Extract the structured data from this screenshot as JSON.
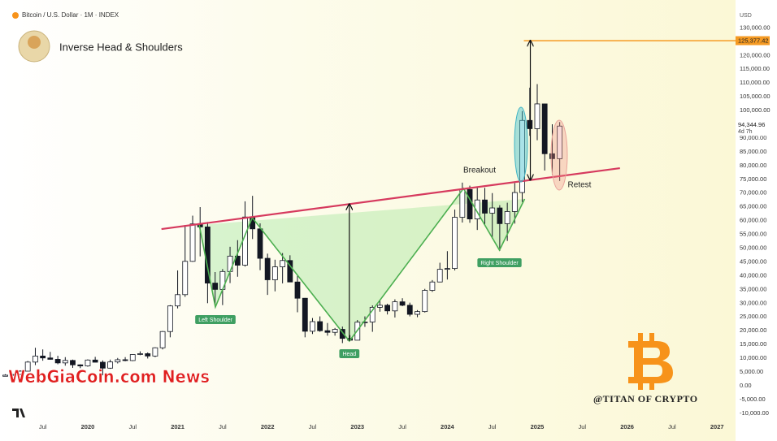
{
  "chart_data": {
    "type": "candlestick",
    "title": "Bitcoin / U.S. Dollar · 1M · INDEX",
    "subtitle": "Inverse Head & Shoulders",
    "currency": "USD",
    "x": [
      2019.083,
      2019.167,
      2019.25,
      2019.333,
      2019.417,
      2019.5,
      2019.583,
      2019.667,
      2019.75,
      2019.833,
      2019.917,
      2020,
      2020.083,
      2020.167,
      2020.25,
      2020.333,
      2020.417,
      2020.5,
      2020.583,
      2020.667,
      2020.75,
      2020.833,
      2020.917,
      2021,
      2021.083,
      2021.167,
      2021.25,
      2021.333,
      2021.417,
      2021.5,
      2021.583,
      2021.667,
      2021.75,
      2021.833,
      2021.917,
      2022,
      2022.083,
      2022.167,
      2022.25,
      2022.333,
      2022.417,
      2022.5,
      2022.583,
      2022.667,
      2022.75,
      2022.833,
      2022.917,
      2023,
      2023.083,
      2023.167,
      2023.25,
      2023.333,
      2023.417,
      2023.5,
      2023.583,
      2023.667,
      2023.75,
      2023.833,
      2023.917,
      2024,
      2024.083,
      2024.167,
      2024.25,
      2024.333,
      2024.417,
      2024.5,
      2024.583,
      2024.667,
      2024.75,
      2024.833,
      2024.917,
      2025,
      2025.083,
      2025.167,
      2025.25
    ],
    "open": [
      3450,
      3850,
      4100,
      5300,
      8600,
      10800,
      10100,
      9600,
      8300,
      9200,
      7600,
      7200,
      9350,
      8550,
      6400,
      8650,
      9450,
      9150,
      11350,
      11650,
      10800,
      13800,
      19700,
      29000,
      33100,
      45200,
      58800,
      57700,
      37300,
      35000,
      41500,
      47100,
      43800,
      61300,
      57000,
      46300,
      38500,
      43200,
      45500,
      37700,
      31800,
      19800,
      23300,
      20000,
      19400,
      20500,
      17200,
      16550,
      23100,
      23150,
      28500,
      29250,
      27200,
      30500,
      29250,
      25950,
      26950,
      34650,
      37700,
      42300,
      42600,
      61200,
      71300,
      60600,
      67500,
      62700,
      64600,
      58900,
      63300,
      70200,
      96400,
      93400,
      102400,
      84300,
      82500
    ],
    "high": [
      4200,
      4100,
      5600,
      9000,
      13800,
      13200,
      12300,
      10900,
      10400,
      9500,
      7800,
      9600,
      10500,
      9200,
      9500,
      10100,
      10400,
      11450,
      12500,
      12100,
      14000,
      19900,
      29300,
      41900,
      58400,
      61800,
      64900,
      59500,
      41300,
      42400,
      50500,
      52900,
      67000,
      69000,
      59000,
      48000,
      45800,
      48200,
      47400,
      40000,
      31900,
      24600,
      25200,
      22800,
      21000,
      21500,
      18400,
      23900,
      25200,
      29200,
      31000,
      29800,
      31400,
      31800,
      30200,
      27500,
      35200,
      38400,
      44700,
      48900,
      64000,
      73800,
      72700,
      71900,
      71900,
      70000,
      65600,
      66500,
      73600,
      99800,
      108300,
      109600,
      102500,
      95000,
      95800
    ],
    "low": [
      3400,
      3700,
      4100,
      5300,
      7500,
      9100,
      9500,
      7800,
      7300,
      6500,
      6400,
      6900,
      8500,
      3800,
      6150,
      8100,
      8900,
      8950,
      11100,
      9900,
      10400,
      13200,
      17600,
      28100,
      32300,
      45000,
      47000,
      30000,
      28800,
      29300,
      37300,
      39600,
      43300,
      53300,
      42000,
      33000,
      34300,
      37200,
      37700,
      26700,
      17600,
      18800,
      19600,
      18200,
      18200,
      15500,
      16300,
      16500,
      21400,
      19600,
      26900,
      25900,
      24800,
      28900,
      25200,
      24900,
      26600,
      34100,
      37600,
      38600,
      41900,
      59300,
      59200,
      56600,
      58500,
      53500,
      49000,
      52600,
      58900,
      66800,
      90800,
      89200,
      78200,
      76600,
      74400
    ],
    "close": [
      3850,
      4100,
      5300,
      8600,
      10800,
      10100,
      9600,
      8300,
      9200,
      7600,
      7200,
      9350,
      8550,
      6400,
      8650,
      9450,
      9150,
      11350,
      11650,
      10800,
      13800,
      19700,
      29000,
      33100,
      45200,
      58800,
      57700,
      37300,
      35000,
      41500,
      47100,
      43800,
      61300,
      57000,
      46300,
      38500,
      43200,
      45500,
      37700,
      31800,
      19800,
      23300,
      20000,
      19400,
      20500,
      17200,
      16550,
      23100,
      23150,
      28500,
      29250,
      27200,
      30500,
      29250,
      25950,
      26950,
      34650,
      37700,
      42300,
      42600,
      61200,
      71300,
      60600,
      67500,
      62700,
      64600,
      58900,
      63300,
      70200,
      96400,
      93400,
      102400,
      84300,
      82500,
      94344.96
    ],
    "up_color": "#ffffff",
    "down_color": "#131722",
    "xlim": [
      2019.024,
      2027.206
    ],
    "ylim": [
      -12400,
      137200
    ],
    "xticks": [
      {
        "value": 2019.5,
        "label": "Jul"
      },
      2020,
      {
        "value": 2020.5,
        "label": "Jul"
      },
      2021,
      {
        "value": 2021.5,
        "label": "Jul"
      },
      2022,
      {
        "value": 2022.5,
        "label": "Jul"
      },
      2023,
      {
        "value": 2023.5,
        "label": "Jul"
      },
      2024,
      {
        "value": 2024.5,
        "label": "Jul"
      },
      2025,
      {
        "value": 2025.5,
        "label": "Jul"
      },
      2026,
      {
        "value": 2026.5,
        "label": "Jul"
      },
      2027
    ],
    "yticks": [
      {
        "value": 130000,
        "label": "130,000.00"
      },
      {
        "value": 120000,
        "label": "120,000.00"
      },
      {
        "value": 115000,
        "label": "115,000.00"
      },
      {
        "value": 110000,
        "label": "110,000.00"
      },
      {
        "value": 105000,
        "label": "105,000.00"
      },
      {
        "value": 100000,
        "label": "100,000.00"
      },
      {
        "value": 90000,
        "label": "90,000.00"
      },
      {
        "value": 85000,
        "label": "85,000.00"
      },
      {
        "value": 80000,
        "label": "80,000.00"
      },
      {
        "value": 75000,
        "label": "75,000.00"
      },
      {
        "value": 70000,
        "label": "70,000.00"
      },
      {
        "value": 65000,
        "label": "65,000.00"
      },
      {
        "value": 60000,
        "label": "60,000.00"
      },
      {
        "value": 55000,
        "label": "55,000.00"
      },
      {
        "value": 50000,
        "label": "50,000.00"
      },
      {
        "value": 45000,
        "label": "45,000.00"
      },
      {
        "value": 40000,
        "label": "40,000.00"
      },
      {
        "value": 35000,
        "label": "35,000.00"
      },
      {
        "value": 30000,
        "label": "30,000.00"
      },
      {
        "value": 25000,
        "label": "25,000.00"
      },
      {
        "value": 20000,
        "label": "20,000.00"
      },
      {
        "value": 15000,
        "label": "15,000.00"
      },
      {
        "value": 10000,
        "label": "10,000.00"
      },
      {
        "value": 5000,
        "label": "5,000.00"
      },
      {
        "value": 0,
        "label": "0.00"
      },
      {
        "value": -5000,
        "label": "-5,000.00"
      },
      {
        "value": -10000,
        "label": "-10,000.00"
      }
    ],
    "grid": false,
    "neckline": {
      "x": [
        2020.82,
        2025.92
      ],
      "y": [
        56930,
        79060
      ],
      "color": "#d63a5e"
    },
    "pattern": {
      "x": [
        2021.24,
        2021.42,
        2021.83,
        2022.91,
        2024.18,
        2024.58,
        2024.86
      ],
      "y": [
        58400,
        28600,
        61060,
        16220,
        71680,
        49260,
        67850
      ],
      "labels": [
        null,
        "Left Shoulder",
        null,
        "Head",
        null,
        "Right Shoulder",
        null
      ],
      "color": "#4caf50"
    },
    "breakout_label": "Breakout",
    "retest_label": "Retest",
    "target": {
      "value": 125377.42,
      "label": "125,377.42",
      "color": "#f59a23"
    },
    "last_price": {
      "value": 94344.96,
      "label": "94,344.96",
      "countdown": "4d 7h"
    }
  },
  "watermark": "WebGiaCoin.com News",
  "credit": "@TITAN OF CRYPTO"
}
